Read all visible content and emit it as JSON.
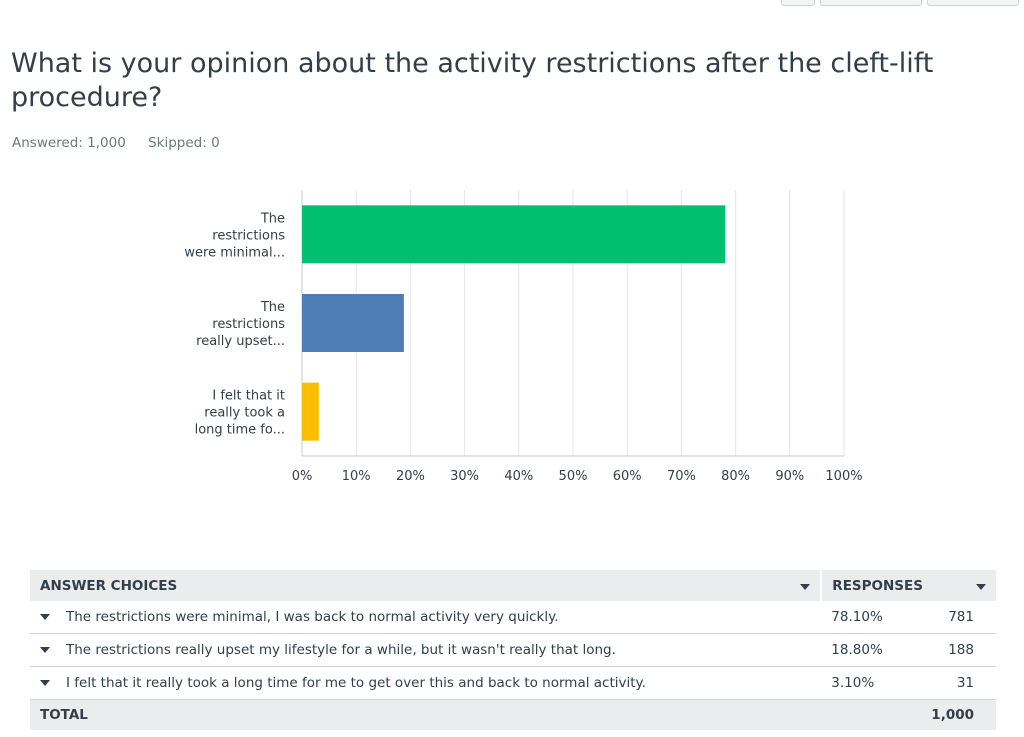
{
  "question": {
    "title": "What is your opinion about the activity restrictions after the cleft-lift procedure?",
    "answered": "Answered: 1,000",
    "skipped": "Skipped: 0"
  },
  "chart_data": {
    "type": "bar",
    "orientation": "horizontal",
    "categories": [
      [
        "The",
        "restrictions",
        "were minimal..."
      ],
      [
        "The",
        "restrictions",
        "really upset..."
      ],
      [
        "I felt that it",
        "really took a",
        "long time fo..."
      ]
    ],
    "values": [
      78.1,
      18.8,
      3.1
    ],
    "colors": [
      "#00bf6f",
      "#507cb6",
      "#f9be00"
    ],
    "xlim": [
      0,
      100
    ],
    "xticks": [
      "0%",
      "10%",
      "20%",
      "30%",
      "40%",
      "50%",
      "60%",
      "70%",
      "80%",
      "90%",
      "100%"
    ],
    "grid": true
  },
  "table": {
    "header_choices": "ANSWER CHOICES",
    "header_responses": "RESPONSES",
    "rows": [
      {
        "choice": "The restrictions were minimal, I was back to normal activity very quickly.",
        "percent": "78.10%",
        "count": "781"
      },
      {
        "choice": "The restrictions really upset my lifestyle for a while, but it wasn't really that long.",
        "percent": "18.80%",
        "count": "188"
      },
      {
        "choice": "I felt that it really took a long time for me to get over this and back to normal activity.",
        "percent": "3.10%",
        "count": "31"
      }
    ],
    "total_label": "TOTAL",
    "total_value": "1,000"
  }
}
